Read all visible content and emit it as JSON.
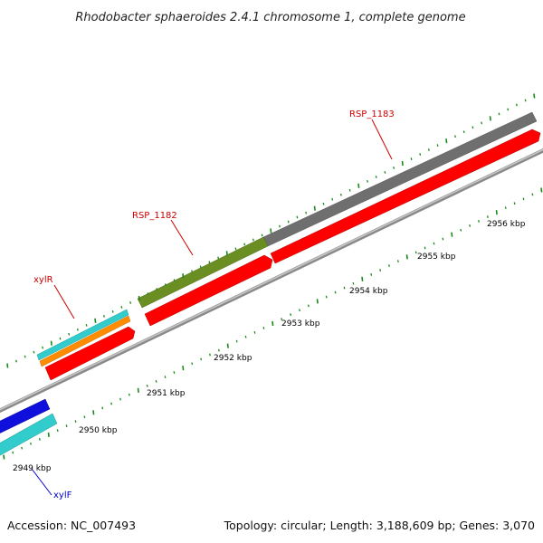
{
  "header": {
    "title": "Rhodobacter sphaeroides 2.4.1 chromosome 1, complete genome"
  },
  "footer": {
    "accession": "Accession: NC_007493",
    "summary": "Topology: circular; Length: 3,188,609 bp; Genes: 3,070"
  },
  "scale": {
    "labels": [
      "2949 kbp",
      "2950 kbp",
      "2951 kbp",
      "2952 kbp",
      "2953 kbp",
      "2954 kbp",
      "2955 kbp",
      "2956 kbp"
    ]
  },
  "gene_labels": [
    {
      "text": "RSP_1183",
      "color": "#cc0000"
    },
    {
      "text": "RSP_1182",
      "color": "#cc0000"
    },
    {
      "text": "xylR",
      "color": "#cc0000"
    },
    {
      "text": "xylF",
      "color": "#0000cc"
    }
  ],
  "colors": {
    "cds": "#ff0000",
    "cds_dark": "#aa0000",
    "gene_gray": "#777777",
    "gene_olive": "#6b8e23",
    "gene_cyan": "#33cccc",
    "gene_orange": "#ff8c00",
    "gene_blue": "#1010dd",
    "backbone": "#999999",
    "tick": "#1a8a1a"
  }
}
